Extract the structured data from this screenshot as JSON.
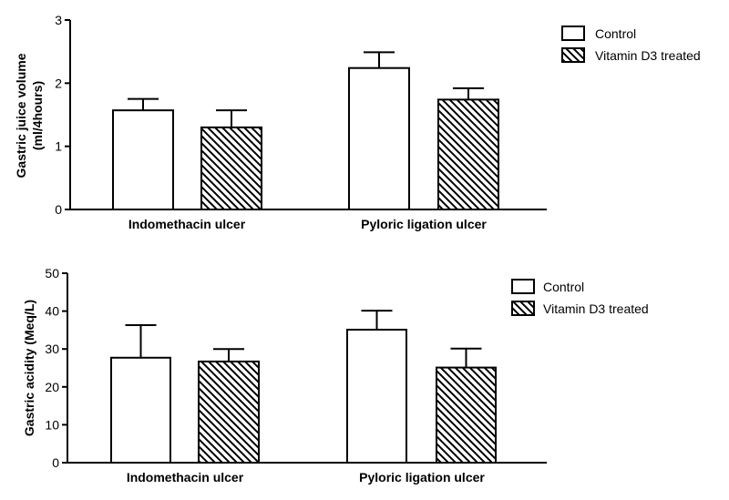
{
  "chart_data": [
    {
      "type": "bar",
      "categories": [
        "Indomethacin ulcer",
        "Pyloric ligation ulcer"
      ],
      "series": [
        {
          "name": "Control",
          "values": [
            1.57,
            2.24
          ],
          "errors": [
            0.18,
            0.25
          ],
          "pattern": "none"
        },
        {
          "name": "Vitamin D3 treated",
          "values": [
            1.3,
            1.74
          ],
          "errors": [
            0.27,
            0.18
          ],
          "pattern": "diagonal-hatch"
        }
      ],
      "ylabel_lines": [
        "Gastric juice volume",
        "(ml/4hours)"
      ],
      "xlabel": "",
      "ylim": [
        0,
        3
      ],
      "yticks": [
        "0",
        "1",
        "2",
        "3"
      ],
      "ytick_values": [
        0,
        1,
        2,
        3
      ],
      "legend_position": "top-right",
      "grid": false
    },
    {
      "type": "bar",
      "categories": [
        "Indomethacin ulcer",
        "Pyloric ligation ulcer"
      ],
      "series": [
        {
          "name": "Control",
          "values": [
            27.7,
            35.1
          ],
          "errors": [
            8.6,
            5.0
          ],
          "pattern": "none"
        },
        {
          "name": "Vitamin D3 treated",
          "values": [
            26.7,
            25.1
          ],
          "errors": [
            3.3,
            5.0
          ],
          "pattern": "diagonal-hatch"
        }
      ],
      "ylabel_lines": [
        "Gastric acidity (Meq/L)"
      ],
      "xlabel": "",
      "ylim": [
        0,
        50
      ],
      "yticks": [
        "0",
        "10",
        "20",
        "30",
        "40",
        "50"
      ],
      "ytick_values": [
        0,
        10,
        20,
        30,
        40,
        50
      ],
      "legend_position": "top-right",
      "grid": false
    }
  ]
}
